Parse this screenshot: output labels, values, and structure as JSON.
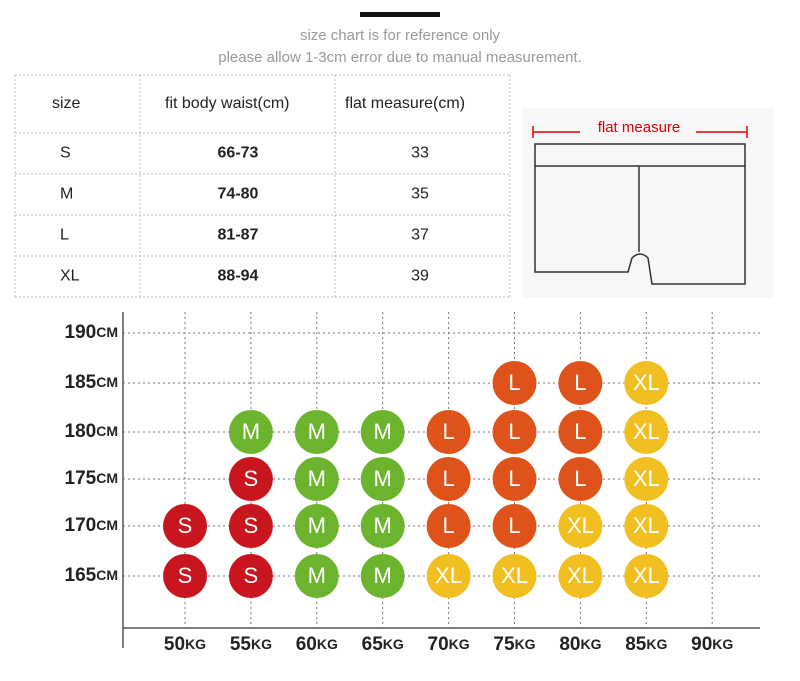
{
  "notes": [
    "size chart is for reference only",
    "please allow 1-3cm error due to manual measurement."
  ],
  "table": {
    "header": [
      "size",
      "fit body waist(cm)",
      "flat measure(cm)"
    ],
    "rows": [
      [
        "S",
        "66-73",
        "33"
      ],
      [
        "M",
        "74-80",
        "35"
      ],
      [
        "L",
        "81-87",
        "37"
      ],
      [
        "XL",
        "88-94",
        "39"
      ]
    ]
  },
  "diagram": {
    "label": "flat measure"
  },
  "grid": {
    "heights": [
      {
        "value": "190",
        "unit": "CM"
      },
      {
        "value": "185",
        "unit": "CM"
      },
      {
        "value": "180",
        "unit": "CM"
      },
      {
        "value": "175",
        "unit": "CM"
      },
      {
        "value": "170",
        "unit": "CM"
      },
      {
        "value": "165",
        "unit": "CM"
      }
    ],
    "weights": [
      {
        "value": "50",
        "unit": "KG"
      },
      {
        "value": "55",
        "unit": "KG"
      },
      {
        "value": "60",
        "unit": "KG"
      },
      {
        "value": "65",
        "unit": "KG"
      },
      {
        "value": "70",
        "unit": "KG"
      },
      {
        "value": "75",
        "unit": "KG"
      },
      {
        "value": "80",
        "unit": "KG"
      },
      {
        "value": "85",
        "unit": "KG"
      },
      {
        "value": "90",
        "unit": "KG"
      }
    ],
    "cells": [
      [
        null,
        null,
        null,
        null,
        null,
        null,
        null,
        null,
        null
      ],
      [
        null,
        null,
        null,
        null,
        null,
        "L",
        "L",
        "XL",
        null
      ],
      [
        null,
        "M",
        "M",
        "M",
        "L",
        "L",
        "L",
        "XL",
        null
      ],
      [
        null,
        "S",
        "M",
        "M",
        "L",
        "L",
        "L",
        "XL",
        null
      ],
      [
        "S",
        "S",
        "M",
        "M",
        "L",
        "L",
        "XL",
        "XL",
        null
      ],
      [
        "S",
        "S",
        "M",
        "M",
        "XL",
        "XL",
        "XL",
        "XL",
        null
      ]
    ],
    "colors": {
      "S": "#c9151e",
      "M": "#6db42e",
      "L": "#df531b",
      "XL": "#f1bf1f"
    }
  }
}
